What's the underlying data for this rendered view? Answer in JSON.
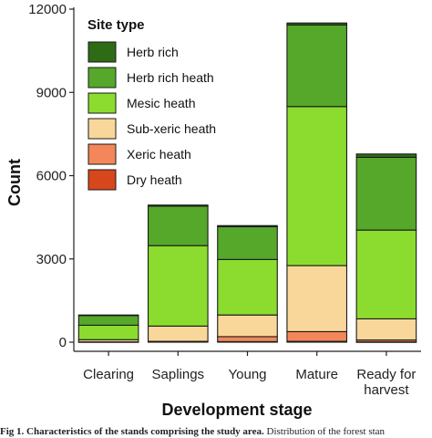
{
  "chart_data": {
    "type": "bar",
    "stacked": true,
    "categories": [
      "Clearing",
      "Saplings",
      "Young",
      "Mature",
      "Ready for\nharvest"
    ],
    "series": [
      {
        "name": "Dry heath",
        "color": "#d7471c",
        "values": [
          0,
          0,
          20,
          30,
          10
        ]
      },
      {
        "name": "Xeric heath",
        "color": "#f3875a",
        "values": [
          10,
          30,
          180,
          350,
          70
        ]
      },
      {
        "name": "Sub-xeric heath",
        "color": "#f9d79a",
        "values": [
          80,
          550,
          780,
          2380,
          760
        ]
      },
      {
        "name": "Mesic heath",
        "color": "#8bdc2e",
        "values": [
          520,
          2900,
          2000,
          5730,
          3200
        ]
      },
      {
        "name": "Herb rich heath",
        "color": "#55a82a",
        "values": [
          350,
          1420,
          1180,
          2940,
          2620
        ]
      },
      {
        "name": "Herb rich",
        "color": "#2f6b15",
        "values": [
          20,
          40,
          40,
          70,
          120
        ]
      }
    ],
    "xlabel": "Development stage",
    "ylabel": "Count",
    "ylim": [
      0,
      12000
    ],
    "yticks": [
      0,
      3000,
      6000,
      9000,
      12000
    ],
    "legend_title": "Site type",
    "legend_placement": "top-left",
    "grid": false
  },
  "caption": {
    "label": "Fig 1. Characteristics of the stands comprising the study area.",
    "text": " Distribution of the forest stan"
  }
}
